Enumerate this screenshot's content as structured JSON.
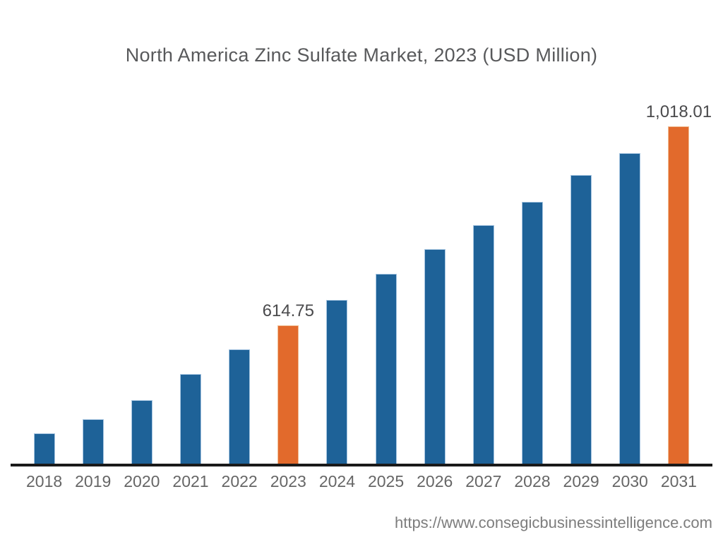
{
  "page": {
    "title": "North America Zinc Sulfate Market, 2023 (USD Million)",
    "source_url": "https://www.consegicbusinessintelligence.com"
  },
  "colors": {
    "background": "#FFFFFF",
    "bar_primary": "#1E6298",
    "bar_highlight": "#E26A2C",
    "bar_edge": "#A6C5E1",
    "bar_highlight_edge": "#F1BE94",
    "axis_line": "#1A1A1A",
    "title_text": "#58595B",
    "tick_text": "#666666",
    "value_label_text": "#4A4A4C",
    "url_text": "#7D7D7D"
  },
  "chart_data": {
    "type": "bar",
    "title": "North America Zinc Sulfate Market, 2023 (USD Million)",
    "unit": "USD Million",
    "categories": [
      "2018",
      "2019",
      "2020",
      "2021",
      "2022",
      "2023",
      "2024",
      "2025",
      "2026",
      "2027",
      "2028",
      "2029",
      "2030",
      "2031"
    ],
    "values": [
      397,
      426,
      464,
      517,
      567,
      614.75,
      667,
      720,
      769,
      818,
      865,
      919,
      963,
      1018.01
    ],
    "bar_labels": [
      "",
      "",
      "",
      "",
      "",
      "614.75",
      "",
      "",
      "",
      "",
      "",
      "",
      "",
      "1,018.01"
    ],
    "highlight_indices": [
      5,
      13
    ],
    "ylim": [
      334,
      1105
    ],
    "baseline_value": 334,
    "grid": false,
    "legend": false,
    "xlabel": "",
    "ylabel": ""
  }
}
